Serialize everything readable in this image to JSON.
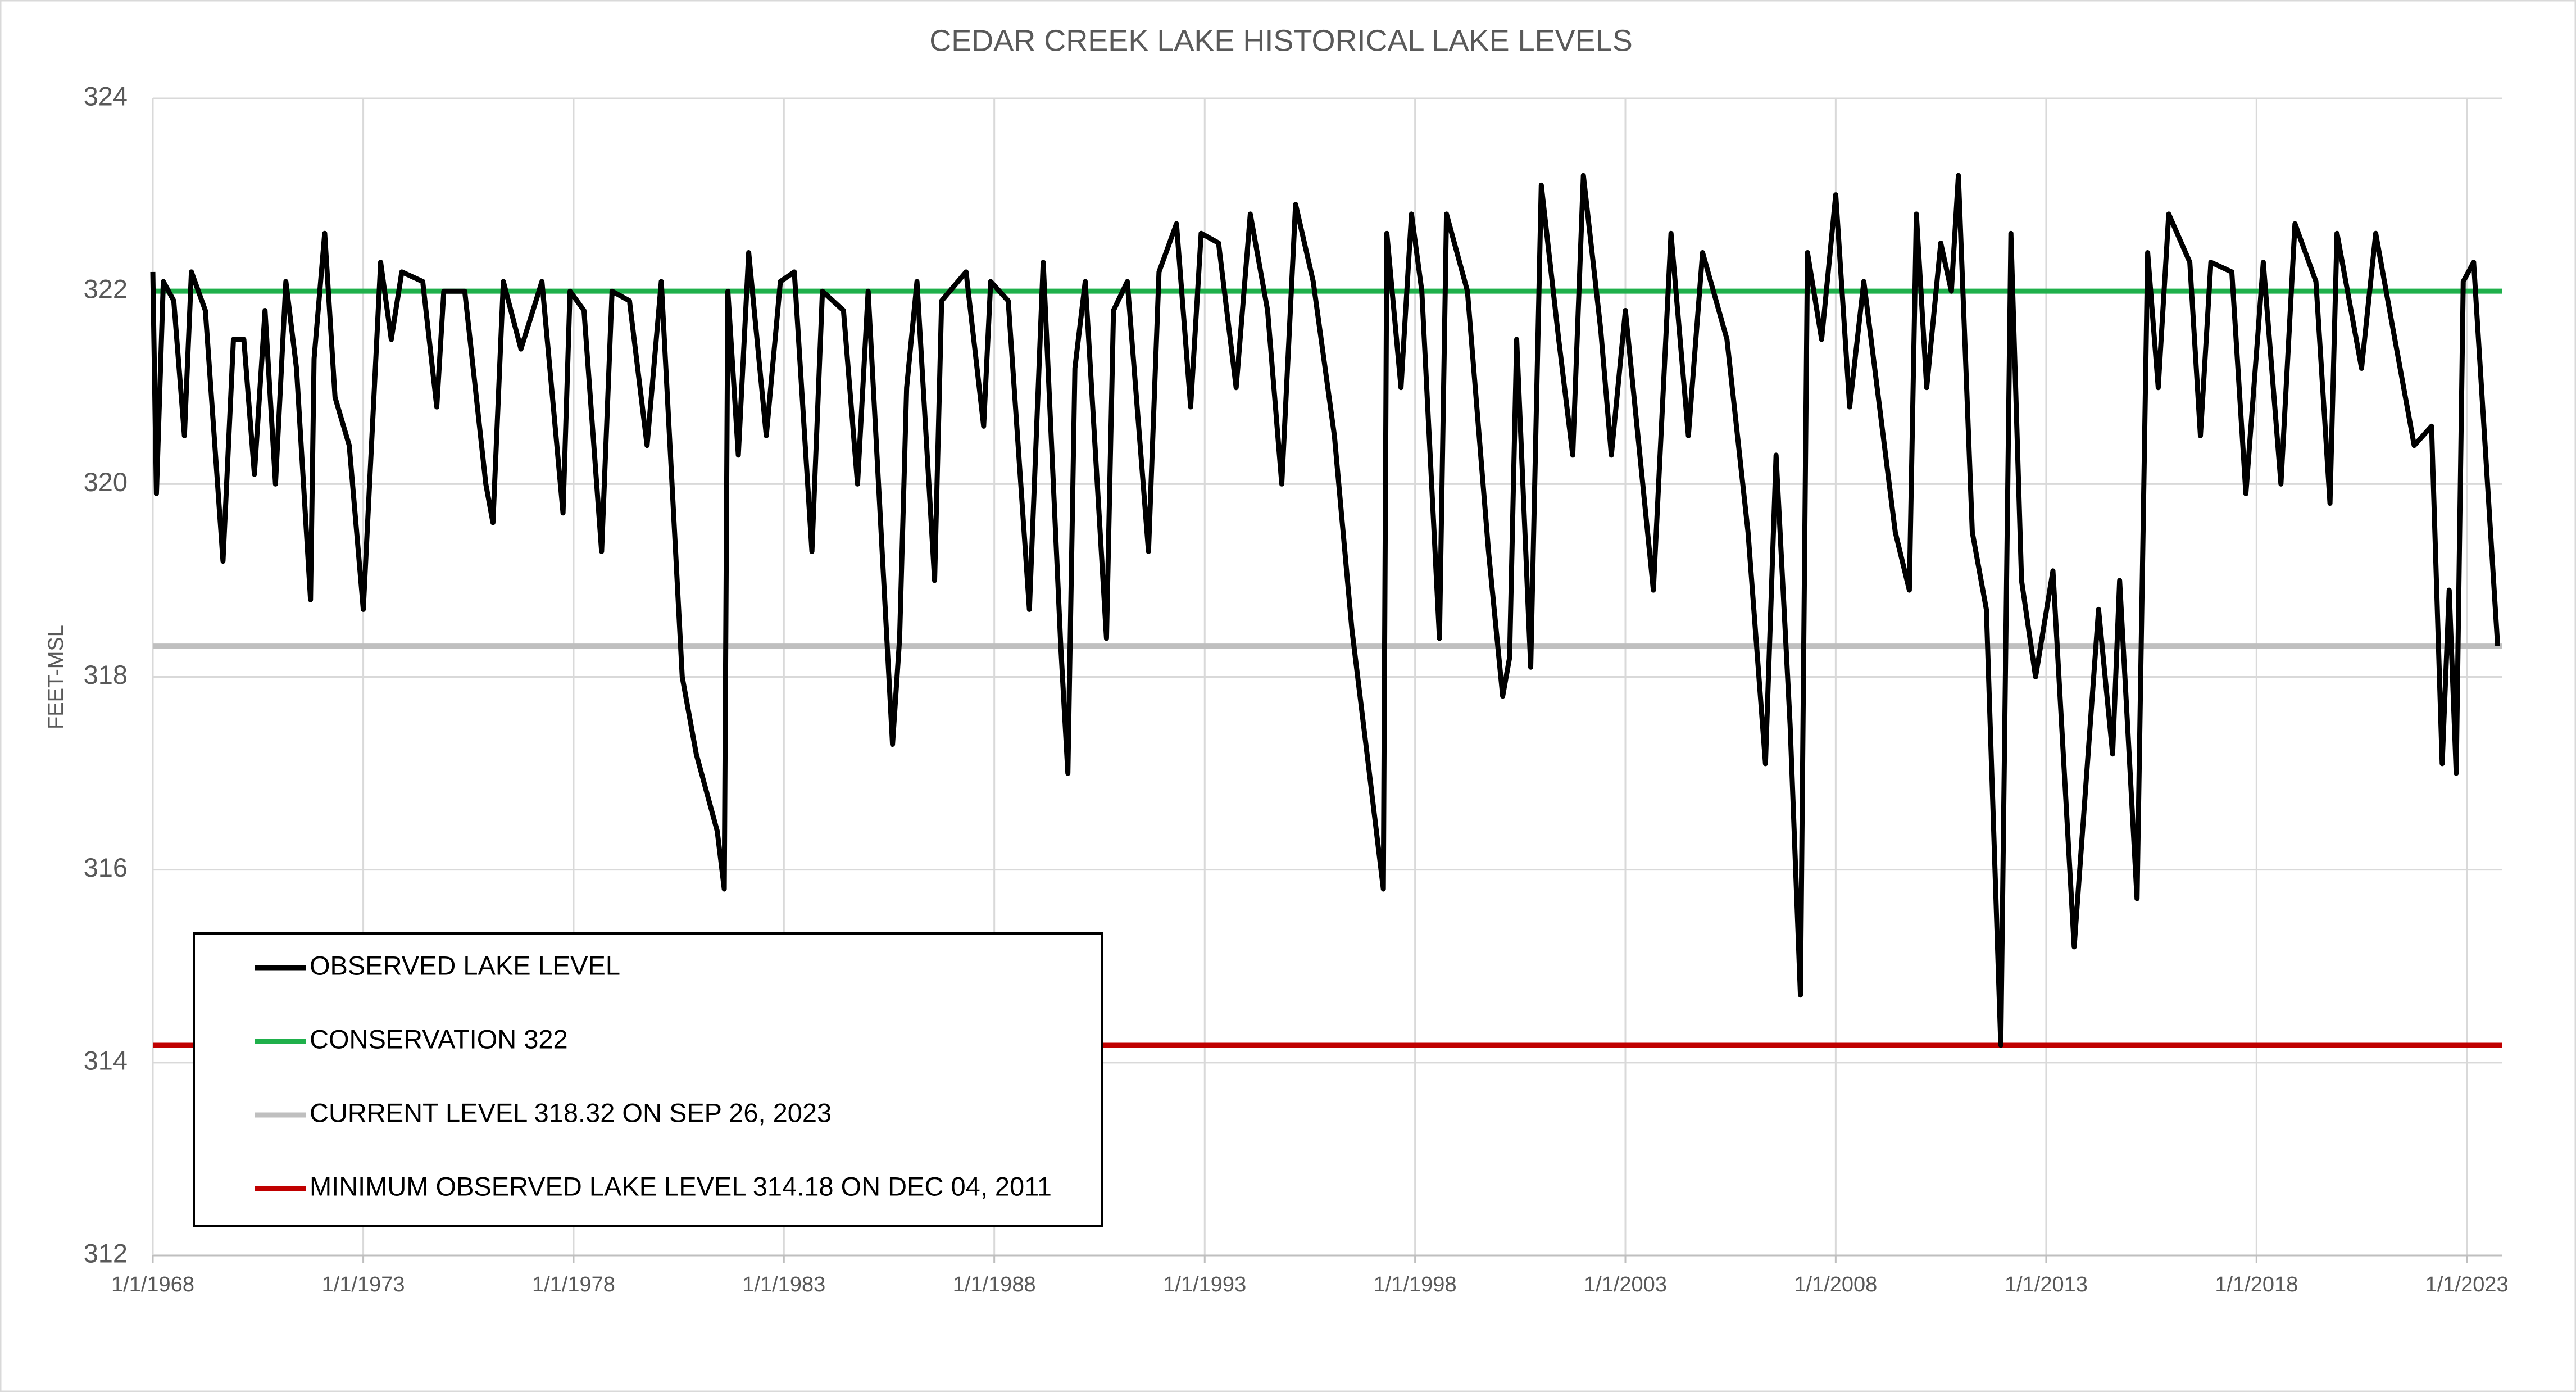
{
  "chart_data": {
    "type": "line",
    "title": "CEDAR CREEK LAKE HISTORICAL LAKE LEVELS",
    "y_label": "FEET-MSL",
    "xlim": [
      "1/1/1968",
      "11/1/2023"
    ],
    "xticks": [
      "1/1/1968",
      "1/1/1973",
      "1/1/1978",
      "1/1/1983",
      "1/1/1988",
      "1/1/1993",
      "1/1/1998",
      "1/1/2003",
      "1/1/2008",
      "1/1/2013",
      "1/1/2018",
      "1/1/2023"
    ],
    "ylim": [
      312,
      324
    ],
    "yticks": [
      312,
      314,
      316,
      318,
      320,
      322,
      324
    ],
    "grid": true,
    "legend": "bottom-left",
    "x": [
      "1/1/1968",
      "2/1/1968",
      "4/1/1968",
      "7/1/1968",
      "10/1/1968",
      "12/1/1968",
      "4/1/1969",
      "9/1/1969",
      "12/1/1969",
      "3/1/1970",
      "6/1/1970",
      "9/1/1970",
      "12/1/1970",
      "3/1/1971",
      "6/1/1971",
      "10/1/1971",
      "11/1/1971",
      "2/1/1972",
      "5/1/1972",
      "9/1/1972",
      "1/1/1973",
      "6/1/1973",
      "9/1/1973",
      "12/1/1973",
      "6/1/1974",
      "10/1/1974",
      "12/1/1974",
      "6/1/1975",
      "12/1/1975",
      "2/1/1976",
      "5/1/1976",
      "10/1/1976",
      "4/1/1977",
      "10/1/1977",
      "12/1/1977",
      "4/1/1978",
      "9/1/1978",
      "12/1/1978",
      "5/1/1979",
      "10/1/1979",
      "2/1/1980",
      "8/1/1980",
      "12/1/1980",
      "6/1/1981",
      "8/1/1981",
      "9/1/1981",
      "12/1/1981",
      "3/1/1982",
      "8/1/1982",
      "12/1/1982",
      "4/1/1983",
      "9/1/1983",
      "12/1/1983",
      "6/1/1984",
      "10/1/1984",
      "1/1/1985",
      "8/1/1985",
      "10/1/1985",
      "12/1/1985",
      "3/1/1986",
      "8/1/1986",
      "10/1/1986",
      "5/1/1987",
      "10/1/1987",
      "12/1/1987",
      "5/1/1988",
      "11/1/1988",
      "3/1/1989",
      "8/1/1989",
      "10/1/1989",
      "12/1/1989",
      "3/1/1990",
      "9/1/1990",
      "11/1/1990",
      "3/1/1991",
      "9/1/1991",
      "12/1/1991",
      "5/1/1992",
      "9/1/1992",
      "12/1/1992",
      "5/1/1993",
      "10/1/1993",
      "2/1/1994",
      "7/1/1994",
      "11/1/1994",
      "3/1/1995",
      "8/1/1995",
      "2/1/1996",
      "7/1/1996",
      "12/1/1996",
      "4/1/1997",
      "5/1/1997",
      "9/1/1997",
      "12/1/1997",
      "3/1/1998",
      "8/1/1998",
      "10/1/1998",
      "4/1/1999",
      "10/1/1999",
      "2/1/2000",
      "4/1/2000",
      "6/1/2000",
      "10/1/2000",
      "1/1/2001",
      "6/1/2001",
      "10/1/2001",
      "1/1/2002",
      "6/1/2002",
      "9/1/2002",
      "1/1/2003",
      "9/1/2003",
      "2/1/2004",
      "7/1/2004",
      "11/1/2004",
      "6/1/2005",
      "12/1/2005",
      "5/1/2006",
      "8/1/2006",
      "12/1/2006",
      "3/1/2007",
      "5/1/2007",
      "9/1/2007",
      "1/1/2008",
      "5/1/2008",
      "9/1/2008",
      "6/1/2009",
      "10/1/2009",
      "12/1/2009",
      "3/1/2010",
      "7/1/2010",
      "10/1/2010",
      "12/1/2010",
      "4/1/2011",
      "8/1/2011",
      "12/4/2011",
      "3/1/2012",
      "6/1/2012",
      "10/1/2012",
      "3/1/2013",
      "9/1/2013",
      "4/1/2014",
      "8/1/2014",
      "10/1/2014",
      "3/1/2015",
      "6/1/2015",
      "9/1/2015",
      "12/1/2015",
      "6/1/2016",
      "9/1/2016",
      "12/1/2016",
      "6/1/2017",
      "10/1/2017",
      "3/1/2018",
      "8/1/2018",
      "12/1/2018",
      "6/1/2019",
      "10/1/2019",
      "12/1/2019",
      "7/1/2020",
      "11/1/2020",
      "4/1/2021",
      "10/1/2021",
      "3/1/2022",
      "6/1/2022",
      "8/1/2022",
      "10/1/2022",
      "12/1/2022",
      "3/1/2023",
      "9/26/2023"
    ],
    "series": [
      {
        "name": "OBSERVED LAKE LEVEL",
        "color": "#000000",
        "values": [
          322.2,
          319.9,
          322.1,
          321.9,
          320.5,
          322.2,
          321.8,
          319.2,
          321.5,
          321.5,
          320.1,
          321.8,
          320.0,
          322.1,
          321.2,
          318.8,
          321.3,
          322.6,
          320.9,
          320.4,
          318.7,
          322.3,
          321.5,
          322.2,
          322.1,
          320.8,
          322.0,
          322.0,
          320.0,
          319.6,
          322.1,
          321.4,
          322.1,
          319.7,
          322.0,
          321.8,
          319.3,
          322.0,
          321.9,
          320.4,
          322.1,
          318.0,
          317.2,
          316.4,
          315.8,
          322.0,
          320.3,
          322.4,
          320.5,
          322.1,
          322.2,
          319.3,
          322.0,
          321.8,
          320.0,
          322.0,
          317.3,
          318.4,
          321.0,
          322.1,
          319.0,
          321.9,
          322.2,
          320.6,
          322.1,
          321.9,
          318.7,
          322.3,
          318.3,
          317.0,
          321.2,
          322.1,
          318.4,
          321.8,
          322.1,
          319.3,
          322.2,
          322.7,
          320.8,
          322.6,
          322.5,
          321.0,
          322.8,
          321.8,
          320.0,
          322.9,
          322.1,
          320.5,
          318.5,
          317.0,
          315.8,
          322.6,
          321.0,
          322.8,
          322.0,
          318.4,
          322.8,
          322.0,
          319.3,
          317.8,
          318.2,
          321.5,
          318.1,
          323.1,
          321.5,
          320.3,
          323.2,
          321.6,
          320.3,
          321.8,
          318.9,
          322.6,
          320.5,
          322.4,
          321.5,
          319.5,
          317.1,
          320.3,
          317.5,
          314.7,
          322.4,
          321.5,
          323.0,
          320.8,
          322.1,
          319.5,
          318.9,
          322.8,
          321.0,
          322.5,
          322.0,
          323.2,
          319.5,
          318.7,
          314.18,
          322.6,
          319.0,
          318.0,
          319.1,
          315.2,
          318.7,
          317.2,
          319.0,
          315.7,
          322.4,
          321.0,
          322.8,
          322.3,
          320.5,
          322.3,
          322.2,
          319.9,
          322.3,
          320.0,
          322.7,
          322.1,
          319.8,
          322.6,
          321.2,
          322.6,
          321.6,
          320.4,
          320.6,
          317.1,
          318.9,
          317.0,
          322.1,
          322.3,
          318.32
        ]
      }
    ],
    "reference_lines": [
      {
        "name": "CONSERVATION 322",
        "color": "#1fb04b",
        "value": 322
      },
      {
        "name": "CURRENT LEVEL 318.32 ON SEP 26, 2023",
        "color": "#bfbfbf",
        "value": 318.32
      },
      {
        "name": "MINIMUM OBSERVED LAKE LEVEL 314.18 ON DEC 04, 2011",
        "color": "#c00000",
        "value": 314.18
      }
    ]
  }
}
